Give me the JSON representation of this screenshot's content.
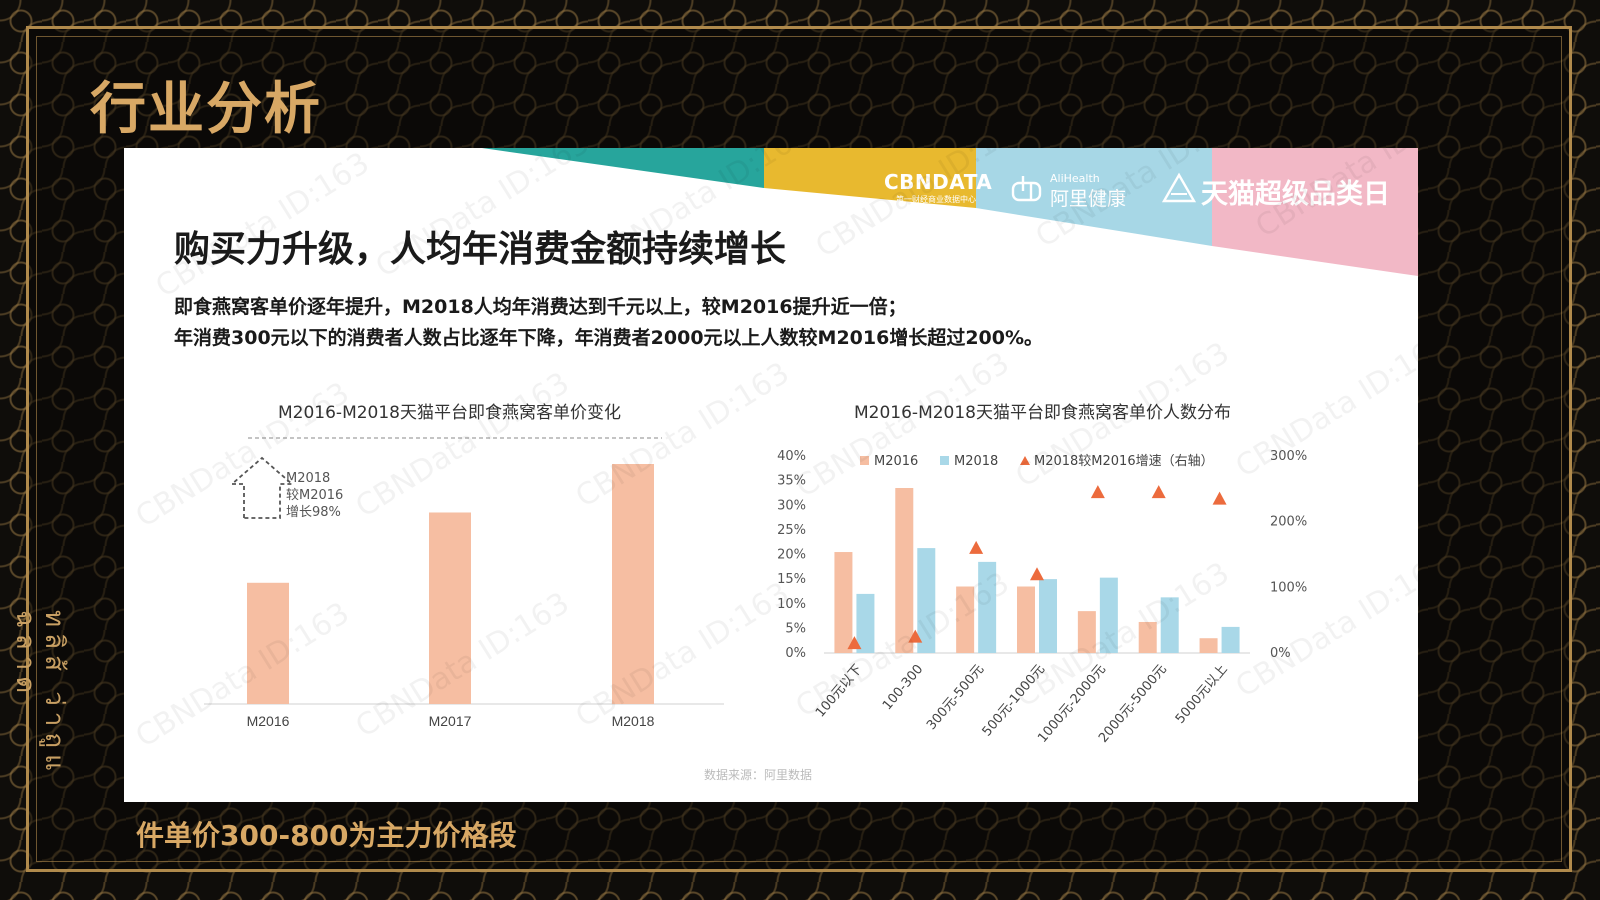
{
  "page": {
    "title": "行业分析",
    "bottom_caption": "件单价300-800为主力价格段",
    "side_decoration": "ทลิส้ ว่าถูแ ฉลาด"
  },
  "slide": {
    "headline": "购买力升级，人均年消费金额持续增长",
    "description_lines": [
      "即食燕窝客单价逐年提升，M2018人均年消费达到千元以上，较M2016提升近一倍；",
      "年消费300元以下的消费者人数占比逐年下降，年消费者2000元以上人数较M2016增长超过200%。"
    ],
    "source": "数据来源：阿里数据",
    "watermark": "CBNData ID:163",
    "banner": {
      "brand_cbn": "CBNDATA",
      "brand_cbn_sub": "第一财经商业数据中心",
      "brand_ali_top": "AliHealth",
      "brand_ali": "阿里健康",
      "brand_tmall": "天猫超级品类日",
      "colors": [
        "#27a59c",
        "#e8b92f",
        "#a7d7e6",
        "#f2b8c6"
      ]
    }
  },
  "chart_data": [
    {
      "type": "bar",
      "title": "M2016-M2018天猫平台即食燕窝客单价变化",
      "categories": [
        "M2016",
        "M2017",
        "M2018"
      ],
      "values": [
        50,
        79,
        99
      ],
      "value_note": "relative bar heights (no y-axis shown)",
      "annotation": [
        "M2018",
        "较M2016",
        "增长98%"
      ],
      "color": "#f6bea2"
    },
    {
      "type": "bar",
      "title": "M2016-M2018天猫平台即食燕窝客单价人数分布",
      "categories": [
        "100元以下",
        "100-300",
        "300元-500元",
        "500元-1000元",
        "1000元-2000元",
        "2000元-5000元",
        "5000元以上"
      ],
      "series": [
        {
          "name": "M2016",
          "values": [
            20.5,
            33.5,
            13.5,
            13.5,
            8.5,
            6.3,
            3.0
          ],
          "color": "#f6bea2",
          "axis": "left"
        },
        {
          "name": "M2018",
          "values": [
            12.0,
            21.3,
            18.5,
            15.0,
            15.3,
            11.3,
            5.3
          ],
          "color": "#a9d8e8",
          "axis": "left"
        },
        {
          "name": "M2018较M2016增速（右轴）",
          "type": "scatter",
          "marker": "triangle",
          "values": [
            15,
            25,
            160,
            120,
            245,
            245,
            235
          ],
          "color": "#ec6b3d",
          "axis": "right"
        }
      ],
      "yticks_left": [
        "0%",
        "5%",
        "10%",
        "15%",
        "20%",
        "25%",
        "30%",
        "35%",
        "40%"
      ],
      "ylim_left": [
        0,
        40
      ],
      "yticks_right": [
        "0%",
        "100%",
        "200%",
        "300%"
      ],
      "ylim_right": [
        0,
        300
      ],
      "legend": "top"
    }
  ]
}
